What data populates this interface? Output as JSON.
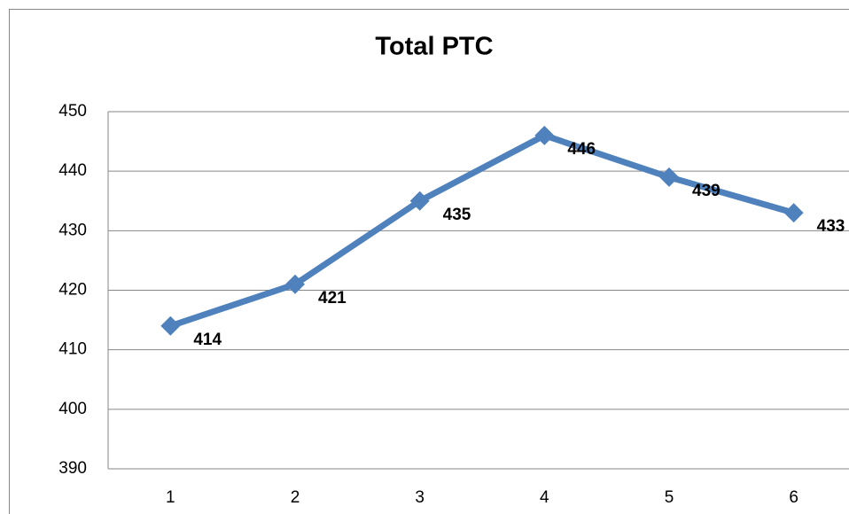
{
  "chart_data": {
    "type": "line",
    "title": "Total PTC",
    "categories": [
      "1",
      "2",
      "3",
      "4",
      "5",
      "6"
    ],
    "series": [
      {
        "name": "Total PTC",
        "color": "#4f81bd",
        "values": [
          414,
          421,
          435,
          446,
          439,
          433
        ]
      }
    ],
    "ylim": [
      390,
      450
    ],
    "yticks": [
      390,
      400,
      410,
      420,
      430,
      440,
      450
    ],
    "grid": true
  }
}
